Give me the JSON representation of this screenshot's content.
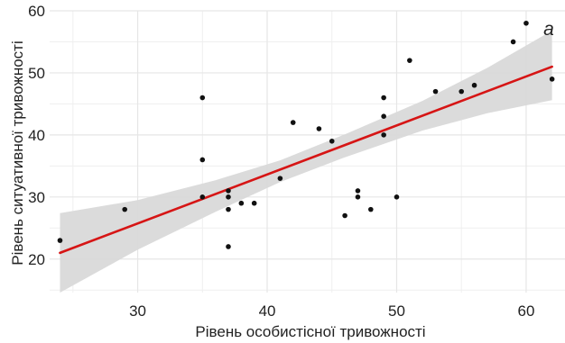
{
  "chart_data": {
    "type": "scatter",
    "panel_label": "a",
    "xlabel": "Рівень особистісної тривожності",
    "ylabel": "Рівень ситуативної тривожності",
    "xlim": [
      23.2,
      63.0
    ],
    "ylim": [
      14.6,
      60.0
    ],
    "x_ticks": [
      30,
      40,
      50,
      60
    ],
    "y_ticks": [
      20,
      30,
      40,
      50,
      60
    ],
    "grid": true,
    "points": [
      {
        "x": 24,
        "y": 23
      },
      {
        "x": 29,
        "y": 28
      },
      {
        "x": 35,
        "y": 46
      },
      {
        "x": 35,
        "y": 36
      },
      {
        "x": 35,
        "y": 30
      },
      {
        "x": 37,
        "y": 31
      },
      {
        "x": 37,
        "y": 30
      },
      {
        "x": 37,
        "y": 28
      },
      {
        "x": 37,
        "y": 22
      },
      {
        "x": 38,
        "y": 29
      },
      {
        "x": 39,
        "y": 29
      },
      {
        "x": 41,
        "y": 33
      },
      {
        "x": 42,
        "y": 42
      },
      {
        "x": 44,
        "y": 41
      },
      {
        "x": 45,
        "y": 39
      },
      {
        "x": 46,
        "y": 27
      },
      {
        "x": 47,
        "y": 31
      },
      {
        "x": 47,
        "y": 30
      },
      {
        "x": 48,
        "y": 28
      },
      {
        "x": 49,
        "y": 46
      },
      {
        "x": 49,
        "y": 43
      },
      {
        "x": 49,
        "y": 40
      },
      {
        "x": 50,
        "y": 30
      },
      {
        "x": 51,
        "y": 52
      },
      {
        "x": 53,
        "y": 47
      },
      {
        "x": 55,
        "y": 47
      },
      {
        "x": 56,
        "y": 48
      },
      {
        "x": 59,
        "y": 55
      },
      {
        "x": 60,
        "y": 58
      },
      {
        "x": 62,
        "y": 49
      }
    ],
    "fit_line": {
      "x": [
        24,
        62
      ],
      "y": [
        21.0,
        51.0
      ]
    },
    "confidence_band": {
      "x": [
        24,
        30,
        36,
        41,
        46,
        52,
        57,
        62
      ],
      "lower": [
        14.6,
        21.5,
        27.6,
        32.4,
        36.4,
        40.7,
        43.5,
        45.6
      ],
      "upper": [
        27.4,
        29.5,
        32.7,
        35.9,
        40.1,
        45.5,
        50.8,
        56.8
      ]
    },
    "colors": {
      "points": "#111111",
      "fit_line": "#d61515",
      "band": "#d9d9d9",
      "grid": "#e6e6e6"
    }
  }
}
